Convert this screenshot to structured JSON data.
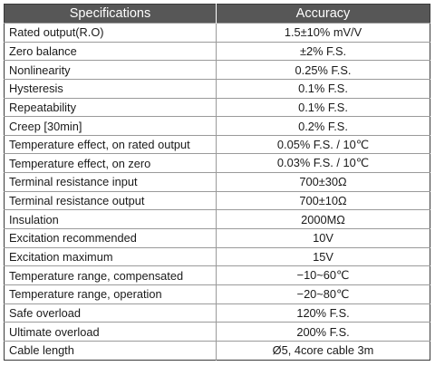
{
  "table": {
    "headers": [
      "Specifications",
      "Accuracy"
    ],
    "rows": [
      {
        "spec": "Rated output(R.O)",
        "value": "1.5±10% mV/V"
      },
      {
        "spec": "Zero balance",
        "value": "±2% F.S."
      },
      {
        "spec": "Nonlinearity",
        "value": "0.25% F.S."
      },
      {
        "spec": "Hysteresis",
        "value": "0.1% F.S."
      },
      {
        "spec": "Repeatability",
        "value": "0.1% F.S."
      },
      {
        "spec": "Creep [30min]",
        "value": "0.2% F.S."
      },
      {
        "spec": "Temperature effect, on rated output",
        "value": "0.05% F.S. / 10℃"
      },
      {
        "spec": "Temperature effect, on zero",
        "value": "0.03% F.S. / 10℃"
      },
      {
        "spec": "Terminal resistance input",
        "value": "700±30Ω"
      },
      {
        "spec": "Terminal resistance output",
        "value": "700±10Ω"
      },
      {
        "spec": "Insulation",
        "value": "2000MΩ"
      },
      {
        "spec": "Excitation recommended",
        "value": "10V"
      },
      {
        "spec": "Excitation maximum",
        "value": "15V"
      },
      {
        "spec": "Temperature range, compensated",
        "value": "−10~60℃"
      },
      {
        "spec": "Temperature range, operation",
        "value": "−20~80℃"
      },
      {
        "spec": "Safe overload",
        "value": "120% F.S."
      },
      {
        "spec": "Ultimate overload",
        "value": "200% F.S."
      },
      {
        "spec": "Cable length",
        "value": "Ø5, 4core cable 3m"
      }
    ]
  }
}
